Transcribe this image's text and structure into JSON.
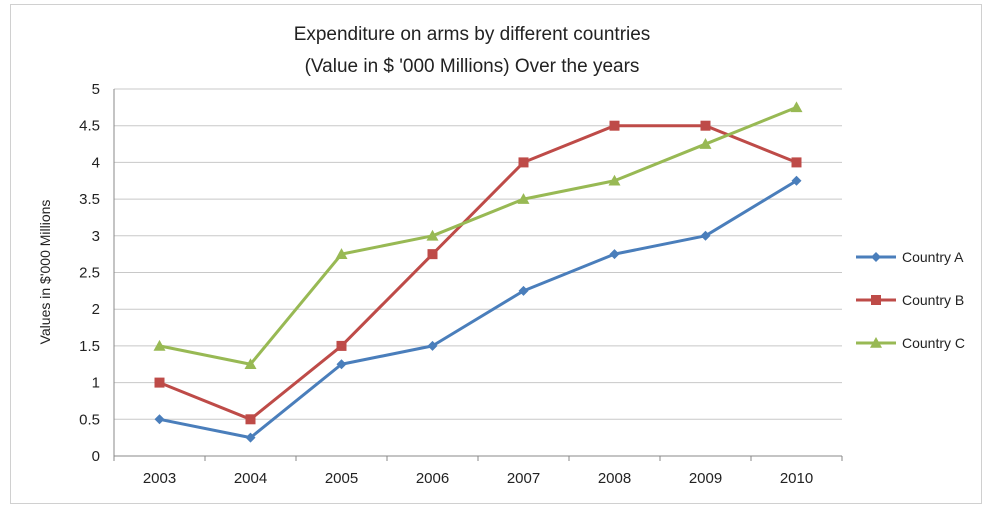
{
  "chart_data": {
    "type": "line",
    "title": "Expenditure on arms by different  countries",
    "subtitle": "(Value in $ '000 Millions) Over the years",
    "xlabel": "",
    "ylabel": "Values in $'000 Millions",
    "categories": [
      "2003",
      "2004",
      "2005",
      "2006",
      "2007",
      "2008",
      "2009",
      "2010"
    ],
    "ylim": [
      0,
      5
    ],
    "yticks": [
      0,
      0.5,
      1,
      1.5,
      2,
      2.5,
      3,
      3.5,
      4,
      4.5,
      5
    ],
    "ytick_labels": [
      "0",
      "0.5",
      "1",
      "1.5",
      "2",
      "2.5",
      "3",
      "3.5",
      "4",
      "4.5",
      "5"
    ],
    "grid": true,
    "legend_position": "right",
    "series": [
      {
        "name": "Country A",
        "color": "#4a7ebb",
        "marker": "diamond",
        "values": [
          0.5,
          0.25,
          1.25,
          1.5,
          2.25,
          2.75,
          3,
          3.75
        ]
      },
      {
        "name": "Country B",
        "color": "#be4b48",
        "marker": "square",
        "values": [
          1,
          0.5,
          1.5,
          2.75,
          4,
          4.5,
          4.5,
          4
        ]
      },
      {
        "name": "Country C",
        "color": "#98b954",
        "marker": "triangle",
        "values": [
          1.5,
          1.25,
          2.75,
          3,
          3.5,
          3.75,
          4.25,
          4.75
        ]
      }
    ]
  }
}
